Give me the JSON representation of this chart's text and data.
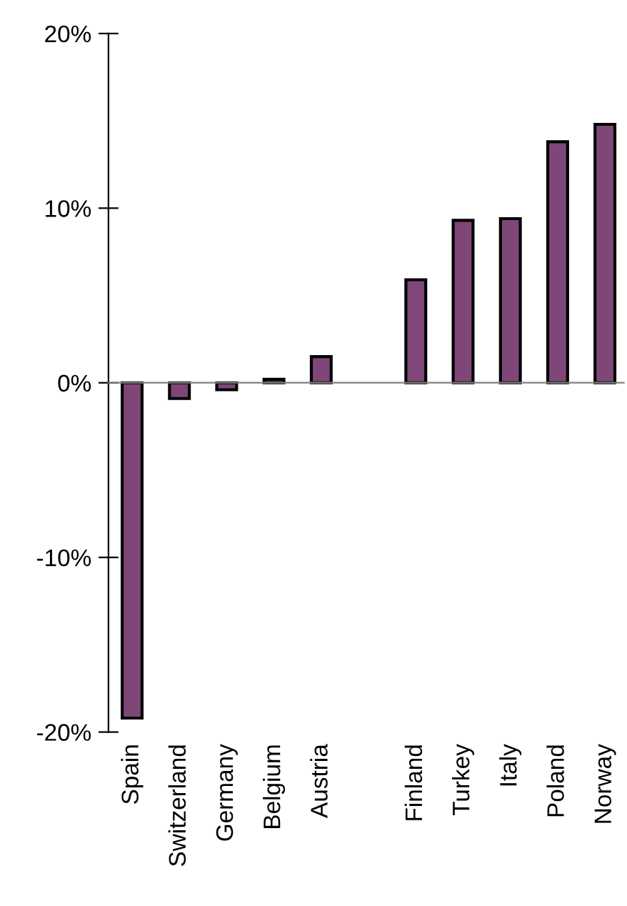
{
  "chart_data": {
    "type": "bar",
    "categories": [
      "Spain",
      "Switzerland",
      "Germany",
      "Belgium",
      "Austria",
      null,
      "Finland",
      "Turkey",
      "Italy",
      "Poland",
      "Norway"
    ],
    "values": [
      -19.2,
      -0.9,
      -0.4,
      0.2,
      1.5,
      null,
      5.9,
      9.3,
      9.4,
      13.8,
      14.8
    ],
    "color": "#7e4778",
    "ylim": [
      -20,
      20
    ],
    "yticks": [
      {
        "value": -20,
        "label": "-20%"
      },
      {
        "value": -10,
        "label": "-10%"
      },
      {
        "value": 0,
        "label": "0%"
      },
      {
        "value": 10,
        "label": "10%"
      },
      {
        "value": 20,
        "label": "20%"
      }
    ],
    "legend": false
  }
}
